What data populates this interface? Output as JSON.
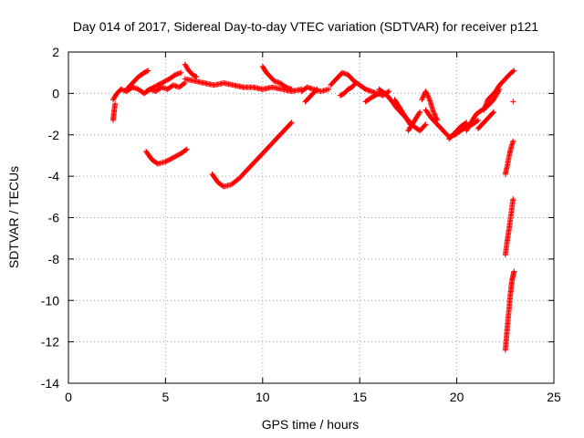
{
  "chart_data": {
    "type": "scatter",
    "title": "Day 014 of 2017, Sidereal Day-to-day VTEC variation (SDTVAR) for receiver p121",
    "xlabel": "GPS time / hours",
    "ylabel": "SDTVAR / TECUs",
    "xlim": [
      0,
      25
    ],
    "ylim": [
      -14,
      2
    ],
    "xticks": [
      0,
      5,
      10,
      15,
      20,
      25
    ],
    "yticks": [
      2,
      0,
      -2,
      -4,
      -6,
      -8,
      -10,
      -12,
      -14
    ],
    "grid": true,
    "marker": "+",
    "colors": {
      "points": "#ff0000",
      "grid": "#a0a0a0",
      "axis": "#000000"
    },
    "series": [
      {
        "segments": [
          {
            "x": [
              2.3,
              2.5,
              2.7,
              3.0,
              3.3,
              3.6,
              3.9,
              4.2,
              4.5,
              4.8,
              5.1,
              5.4,
              5.7,
              6.0
            ],
            "y": [
              -0.3,
              0.0,
              0.2,
              0.1,
              0.3,
              0.2,
              0.0,
              0.2,
              0.1,
              0.3,
              0.2,
              0.4,
              0.3,
              0.5
            ]
          },
          {
            "x": [
              2.3,
              2.35,
              2.4
            ],
            "y": [
              -1.3,
              -0.9,
              -0.5
            ]
          },
          {
            "x": [
              3.0,
              3.3,
              3.6,
              3.9,
              4.1
            ],
            "y": [
              0.2,
              0.5,
              0.8,
              1.0,
              1.1
            ]
          },
          {
            "x": [
              4.0,
              4.4,
              4.8,
              5.2,
              5.5,
              5.8
            ],
            "y": [
              0.1,
              0.3,
              0.5,
              0.7,
              0.9,
              1.0
            ]
          },
          {
            "x": [
              4.0,
              4.3,
              4.6,
              5.0,
              5.4,
              5.8,
              6.1
            ],
            "y": [
              -2.8,
              -3.2,
              -3.4,
              -3.3,
              -3.1,
              -2.9,
              -2.7
            ]
          },
          {
            "x": [
              6.0,
              6.5,
              7.0,
              7.5,
              8.0,
              8.5,
              9.0,
              9.5,
              10.0,
              10.5,
              11.0,
              11.5,
              12.0
            ],
            "y": [
              0.7,
              0.6,
              0.5,
              0.4,
              0.5,
              0.4,
              0.3,
              0.3,
              0.2,
              0.3,
              0.2,
              0.1,
              0.2
            ]
          },
          {
            "x": [
              6.0,
              6.2,
              6.4,
              6.6
            ],
            "y": [
              1.4,
              1.1,
              0.9,
              0.8
            ]
          },
          {
            "x": [
              7.4,
              7.7,
              8.0,
              8.4,
              8.8,
              9.2,
              9.6,
              10.0,
              10.4,
              10.8,
              11.2,
              11.5
            ],
            "y": [
              -3.9,
              -4.3,
              -4.5,
              -4.4,
              -4.1,
              -3.7,
              -3.3,
              -2.9,
              -2.5,
              -2.1,
              -1.7,
              -1.4
            ]
          },
          {
            "x": [
              10.0,
              10.2,
              10.4,
              10.6,
              10.9,
              11.2,
              11.5
            ],
            "y": [
              1.3,
              1.0,
              0.8,
              0.6,
              0.5,
              0.3,
              0.2
            ]
          },
          {
            "x": [
              12.0,
              12.3,
              12.6,
              13.0,
              13.4
            ],
            "y": [
              0.1,
              0.3,
              0.2,
              0.1,
              0.2
            ]
          },
          {
            "x": [
              12.2,
              12.4,
              12.6,
              12.8
            ],
            "y": [
              -0.4,
              -0.2,
              0.0,
              0.2
            ]
          },
          {
            "x": [
              13.5,
              13.8,
              14.1,
              14.4,
              14.7,
              15.0,
              15.3,
              15.6,
              15.9,
              16.2,
              16.5
            ],
            "y": [
              0.4,
              0.7,
              1.0,
              0.9,
              0.6,
              0.4,
              0.2,
              0.1,
              0.0,
              -0.1,
              0.1
            ]
          },
          {
            "x": [
              14.0,
              14.2,
              14.4,
              14.6,
              14.8
            ],
            "y": [
              -0.1,
              0.0,
              0.2,
              0.3,
              0.5
            ]
          },
          {
            "x": [
              15.3,
              15.6,
              16.0
            ],
            "y": [
              -0.4,
              -0.2,
              0.0
            ]
          },
          {
            "x": [
              16.0,
              16.3,
              16.6,
              16.9,
              17.2,
              17.5,
              17.8,
              18.1,
              18.4
            ],
            "y": [
              0.2,
              0.0,
              -0.3,
              -0.7,
              -1.0,
              -1.3,
              -1.6,
              -1.8,
              -1.5
            ]
          },
          {
            "x": [
              16.8,
              17.0,
              17.2,
              17.4,
              17.6
            ],
            "y": [
              -0.3,
              -0.6,
              -0.9,
              -1.2,
              -1.5
            ]
          },
          {
            "x": [
              17.5,
              17.7,
              17.9,
              18.1
            ],
            "y": [
              -1.8,
              -1.5,
              -1.2,
              -0.9
            ]
          },
          {
            "x": [
              18.2,
              18.4,
              18.6,
              18.8,
              19.0
            ],
            "y": [
              -0.3,
              0.1,
              -0.3,
              -0.9,
              -1.3
            ]
          },
          {
            "x": [
              18.4,
              18.7,
              19.0,
              19.3,
              19.6,
              19.9,
              20.2,
              20.5,
              20.8,
              21.1
            ],
            "y": [
              -0.8,
              -1.2,
              -1.5,
              -1.8,
              -2.1,
              -2.0,
              -1.8,
              -1.6,
              -1.5,
              -1.3
            ]
          },
          {
            "x": [
              19.6,
              19.9,
              20.2,
              20.5
            ],
            "y": [
              -2.2,
              -1.9,
              -1.6,
              -1.4
            ]
          },
          {
            "x": [
              20.5,
              20.8,
              21.0,
              21.3,
              21.6,
              21.9,
              22.2
            ],
            "y": [
              -1.8,
              -1.3,
              -1.0,
              -0.8,
              -0.6,
              -0.3,
              0.2
            ]
          },
          {
            "x": [
              21.1,
              21.3,
              21.5,
              21.7,
              21.9
            ],
            "y": [
              -1.7,
              -1.5,
              -1.3,
              -1.1,
              -0.9
            ]
          },
          {
            "x": [
              21.4,
              21.6,
              21.8,
              22.0,
              22.2,
              22.4
            ],
            "y": [
              -0.8,
              -0.3,
              -0.1,
              0.1,
              0.4,
              0.6
            ]
          },
          {
            "x": [
              22.4,
              22.6,
              22.8,
              22.95
            ],
            "y": [
              0.6,
              0.8,
              1.0,
              1.1
            ]
          },
          {
            "x": [
              22.9
            ],
            "y": [
              -0.4
            ]
          },
          {
            "x": [
              22.5,
              22.6,
              22.7,
              22.8,
              22.9
            ],
            "y": [
              -3.9,
              -3.5,
              -3.0,
              -2.6,
              -2.3
            ]
          },
          {
            "x": [
              22.5,
              22.6,
              22.7,
              22.8,
              22.9
            ],
            "y": [
              -7.8,
              -7.1,
              -6.5,
              -5.8,
              -5.1
            ]
          },
          {
            "x": [
              22.5,
              22.55,
              22.6,
              22.65,
              22.7,
              22.75,
              22.8,
              22.85,
              22.9,
              22.95
            ],
            "y": [
              -12.4,
              -11.9,
              -11.3,
              -10.8,
              -10.3,
              -9.8,
              -9.4,
              -9.0,
              -8.8,
              -8.6
            ]
          }
        ]
      }
    ]
  }
}
